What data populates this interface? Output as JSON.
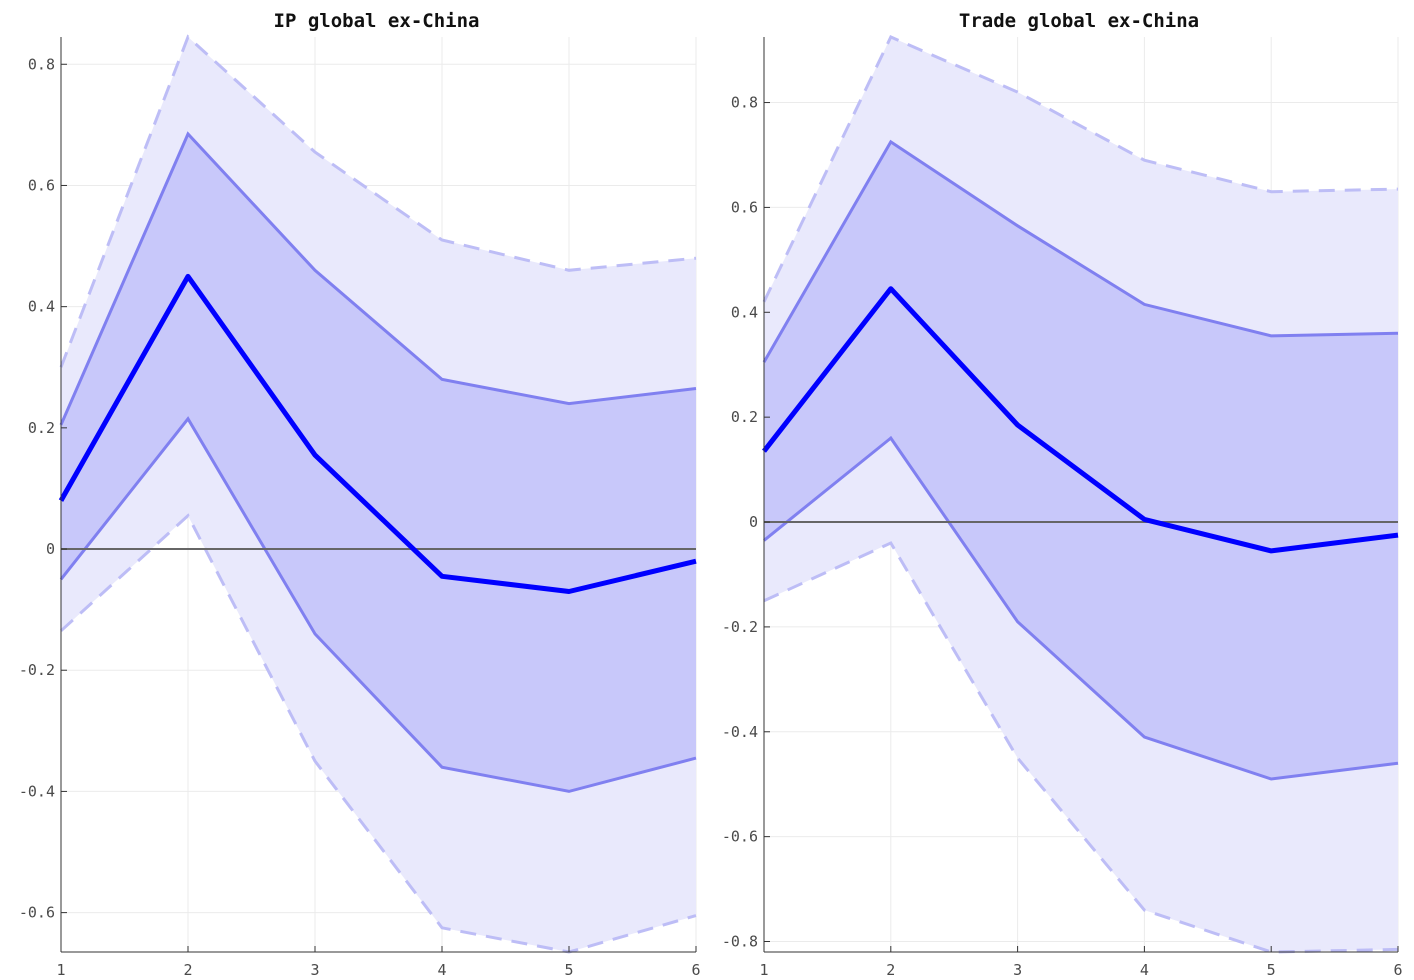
{
  "colors": {
    "median": "#0000ff",
    "inner_band": "#c8c8fa",
    "inner_edge": "#8080f0",
    "outer_band": "#e9e9fc",
    "outer_edge": "#bdbdf6",
    "zero_line": "#666666",
    "grid": "#ebebeb"
  },
  "chart_data": [
    {
      "type": "line",
      "title": "IP global ex-China",
      "x": [
        1,
        2,
        3,
        4,
        5,
        6
      ],
      "xticks": [
        "1",
        "2",
        "3",
        "4",
        "5",
        "6"
      ],
      "yticks": [
        0.8,
        0.6,
        0.4,
        0.2,
        0,
        -0.2,
        -0.4,
        -0.6
      ],
      "ytick_labels": [
        "0.8",
        "0.6",
        "0.4",
        "0.2",
        "0",
        "-0.2",
        "-0.4",
        "-0.6"
      ],
      "xlim": [
        1,
        6
      ],
      "ylim": [
        -0.665,
        0.845
      ],
      "grid": true,
      "series": [
        {
          "role": "median",
          "values": [
            0.08,
            0.45,
            0.155,
            -0.045,
            -0.07,
            -0.02
          ]
        },
        {
          "role": "inner_upper",
          "values": [
            0.205,
            0.685,
            0.46,
            0.28,
            0.24,
            0.265
          ]
        },
        {
          "role": "inner_lower",
          "values": [
            -0.05,
            0.215,
            -0.14,
            -0.36,
            -0.4,
            -0.345
          ]
        },
        {
          "role": "outer_upper",
          "values": [
            0.3,
            0.845,
            0.655,
            0.51,
            0.46,
            0.48
          ]
        },
        {
          "role": "outer_lower",
          "values": [
            -0.135,
            0.055,
            -0.35,
            -0.625,
            -0.665,
            -0.605
          ]
        }
      ]
    },
    {
      "type": "line",
      "title": "Trade global ex-China",
      "x": [
        1,
        2,
        3,
        4,
        5,
        6
      ],
      "xticks": [
        "1",
        "2",
        "3",
        "4",
        "5",
        "6"
      ],
      "yticks": [
        0.8,
        0.6,
        0.4,
        0.2,
        0,
        -0.2,
        -0.4,
        -0.6,
        -0.8
      ],
      "ytick_labels": [
        "0.8",
        "0.6",
        "0.4",
        "0.2",
        "0",
        "-0.2",
        "-0.4",
        "-0.6",
        "-0.8"
      ],
      "xlim": [
        1,
        6
      ],
      "ylim": [
        -0.82,
        0.925
      ],
      "grid": true,
      "series": [
        {
          "role": "median",
          "values": [
            0.135,
            0.445,
            0.185,
            0.005,
            -0.055,
            -0.025
          ]
        },
        {
          "role": "inner_upper",
          "values": [
            0.305,
            0.725,
            0.565,
            0.415,
            0.355,
            0.36
          ]
        },
        {
          "role": "inner_lower",
          "values": [
            -0.035,
            0.16,
            -0.19,
            -0.41,
            -0.49,
            -0.46
          ]
        },
        {
          "role": "outer_upper",
          "values": [
            0.42,
            0.925,
            0.82,
            0.69,
            0.63,
            0.635
          ]
        },
        {
          "role": "outer_lower",
          "values": [
            -0.15,
            -0.04,
            -0.45,
            -0.74,
            -0.82,
            -0.815
          ]
        }
      ]
    }
  ]
}
